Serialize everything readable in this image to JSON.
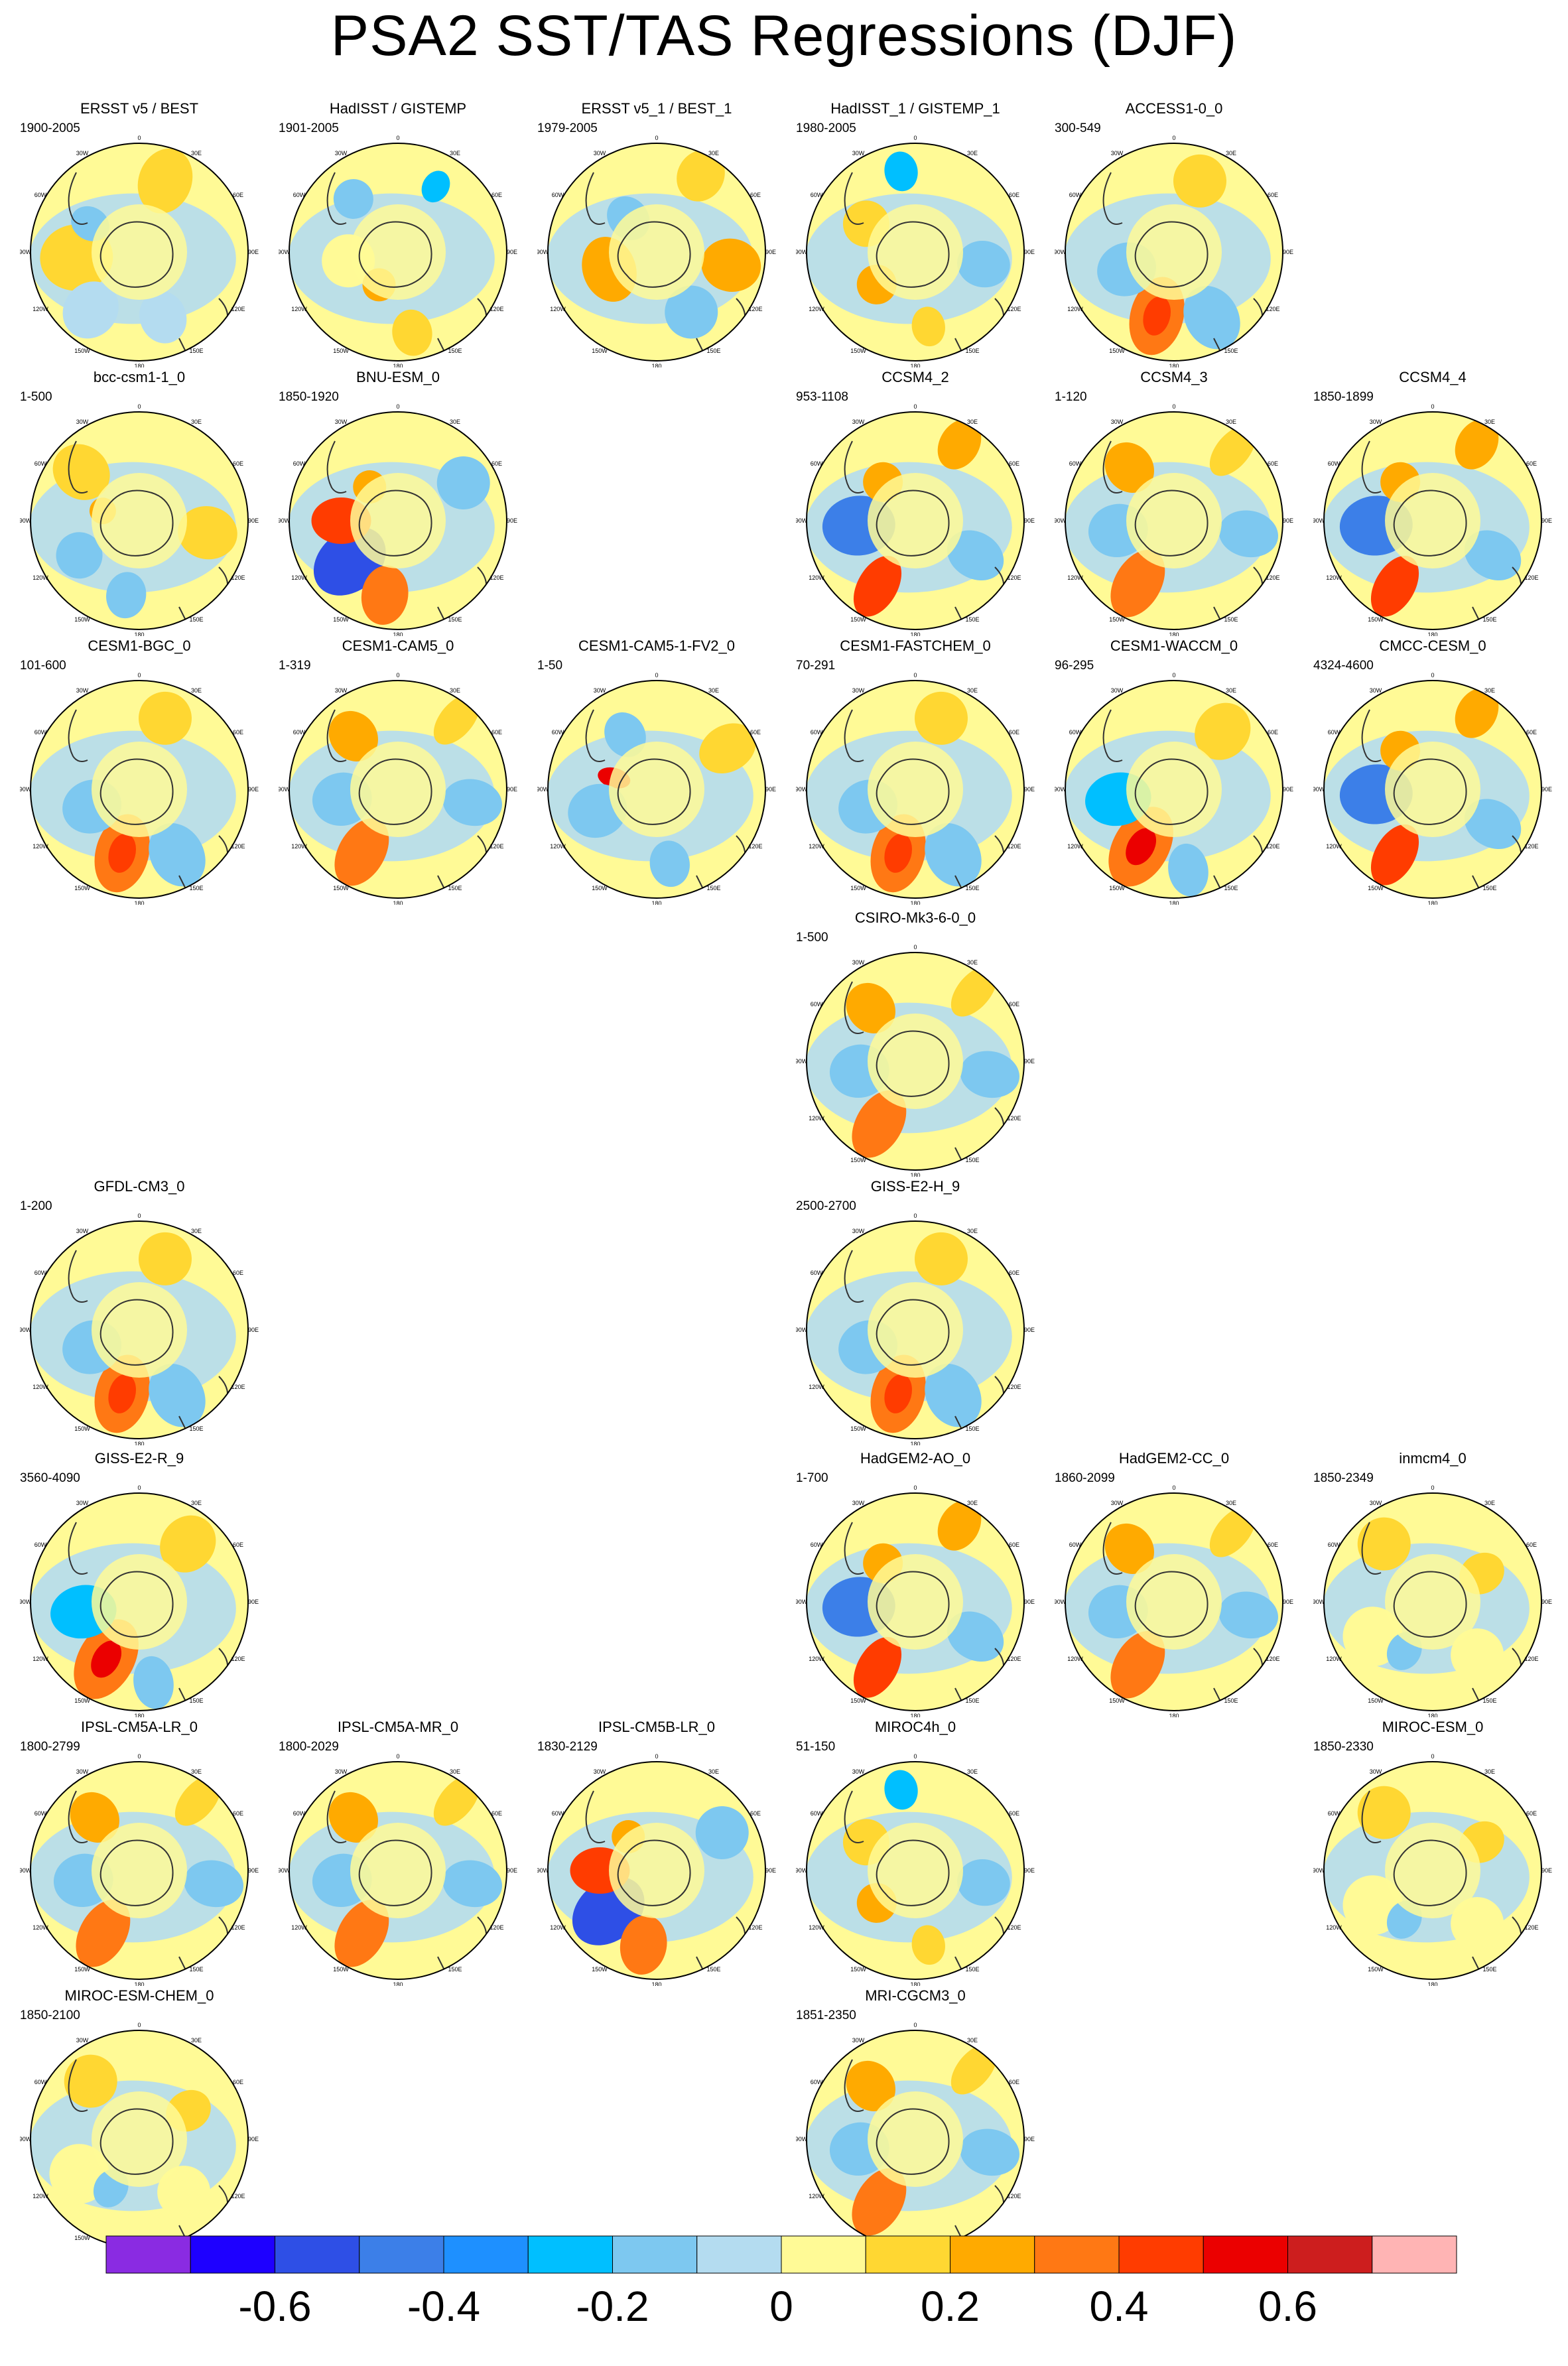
{
  "title": "PSA2 SST/TAS Regressions (DJF)",
  "panels": [
    {
      "title": "ERSST v5 / BEST",
      "period": "1900-2005",
      "row": 0,
      "col": 0,
      "pattern": "obs_smooth"
    },
    {
      "title": "HadISST / GISTEMP",
      "period": "1901-2005",
      "row": 0,
      "col": 1,
      "pattern": "obs_noisy"
    },
    {
      "title": "ERSST v5_1 / BEST_1",
      "period": "1979-2005",
      "row": 0,
      "col": 2,
      "pattern": "obs_modern"
    },
    {
      "title": "HadISST_1 / GISTEMP_1",
      "period": "1980-2005",
      "row": 0,
      "col": 3,
      "pattern": "obs_noisy2"
    },
    {
      "title": "ACCESS1-0_0",
      "period": "300-549",
      "row": 0,
      "col": 4,
      "pattern": "psa_orange"
    },
    {
      "title": "bcc-csm1-1_0",
      "period": "1-500",
      "row": 1,
      "col": 0,
      "pattern": "weak_blue"
    },
    {
      "title": "BNU-ESM_0",
      "period": "1850-1920",
      "row": 1,
      "col": 1,
      "pattern": "strong_blue"
    },
    {
      "title": "CCSM4_2",
      "period": "953-1108",
      "row": 1,
      "col": 3,
      "pattern": "psa_strong"
    },
    {
      "title": "CCSM4_3",
      "period": "1-120",
      "row": 1,
      "col": 4,
      "pattern": "psa_ring"
    },
    {
      "title": "CCSM4_4",
      "period": "1850-1899",
      "row": 1,
      "col": 5,
      "pattern": "psa_strong"
    },
    {
      "title": "CESM1-BGC_0",
      "period": "101-600",
      "row": 2,
      "col": 0,
      "pattern": "psa_orange"
    },
    {
      "title": "CESM1-CAM5_0",
      "period": "1-319",
      "row": 2,
      "col": 1,
      "pattern": "psa_ring"
    },
    {
      "title": "CESM1-CAM5-1-FV2_0",
      "period": "1-50",
      "row": 2,
      "col": 2,
      "pattern": "red_spot"
    },
    {
      "title": "CESM1-FASTCHEM_0",
      "period": "70-291",
      "row": 2,
      "col": 3,
      "pattern": "psa_orange"
    },
    {
      "title": "CESM1-WACCM_0",
      "period": "96-295",
      "row": 2,
      "col": 4,
      "pattern": "psa_red"
    },
    {
      "title": "CMCC-CESM_0",
      "period": "4324-4600",
      "row": 2,
      "col": 5,
      "pattern": "psa_strong"
    },
    {
      "title": "CSIRO-Mk3-6-0_0",
      "period": "1-500",
      "row": 3,
      "col": 3,
      "pattern": "psa_ring"
    },
    {
      "title": "GFDL-CM3_0",
      "period": "1-200",
      "row": 4,
      "col": 0,
      "pattern": "psa_orange"
    },
    {
      "title": "GISS-E2-H_9",
      "period": "2500-2700",
      "row": 4,
      "col": 3,
      "pattern": "psa_orange"
    },
    {
      "title": "GISS-E2-R_9",
      "period": "3560-4090",
      "row": 5,
      "col": 0,
      "pattern": "psa_red"
    },
    {
      "title": "HadGEM2-AO_0",
      "period": "1-700",
      "row": 5,
      "col": 3,
      "pattern": "psa_strong"
    },
    {
      "title": "HadGEM2-CC_0",
      "period": "1860-2099",
      "row": 5,
      "col": 4,
      "pattern": "psa_ring"
    },
    {
      "title": "inmcm4_0",
      "period": "1850-2349",
      "row": 5,
      "col": 5,
      "pattern": "weak_yellow"
    },
    {
      "title": "IPSL-CM5A-LR_0",
      "period": "1800-2799",
      "row": 6,
      "col": 0,
      "pattern": "psa_ring"
    },
    {
      "title": "IPSL-CM5A-MR_0",
      "period": "1800-2029",
      "row": 6,
      "col": 1,
      "pattern": "psa_ring"
    },
    {
      "title": "IPSL-CM5B-LR_0",
      "period": "1830-2129",
      "row": 6,
      "col": 2,
      "pattern": "strong_blue"
    },
    {
      "title": "MIROC4h_0",
      "period": "51-150",
      "row": 6,
      "col": 3,
      "pattern": "obs_noisy2"
    },
    {
      "title": "MIROC-ESM_0",
      "period": "1850-2330",
      "row": 6,
      "col": 5,
      "pattern": "weak_yellow"
    },
    {
      "title": "MIROC-ESM-CHEM_0",
      "period": "1850-2100",
      "row": 7,
      "col": 0,
      "pattern": "weak_yellow"
    },
    {
      "title": "MRI-CGCM3_0",
      "period": "1851-2350",
      "row": 7,
      "col": 3,
      "pattern": "psa_ring"
    }
  ],
  "lon_labels": [
    "0",
    "30E",
    "60E",
    "90E",
    "120E",
    "150E",
    "180",
    "150W",
    "120W",
    "90W",
    "60W",
    "30W"
  ],
  "colorbar": {
    "colors": [
      "#8a2be2",
      "#1e00ff",
      "#2e4fe6",
      "#3c7fe8",
      "#1e90ff",
      "#00bfff",
      "#7dc8f0",
      "#b4dcf0",
      "#fffa96",
      "#ffd732",
      "#ffaa00",
      "#ff7814",
      "#ff3c00",
      "#eb0000",
      "#cd1e1e",
      "#ffb4b4"
    ],
    "tick_values": [
      -0.6,
      -0.4,
      -0.2,
      0,
      0.2,
      0.4,
      0.6
    ],
    "tick_labels": [
      "-0.6",
      "-0.4",
      "-0.2",
      "0",
      "0.2",
      "0.4",
      "0.6"
    ],
    "bin_width": 0.1,
    "min": -0.75,
    "max": 0.85
  }
}
